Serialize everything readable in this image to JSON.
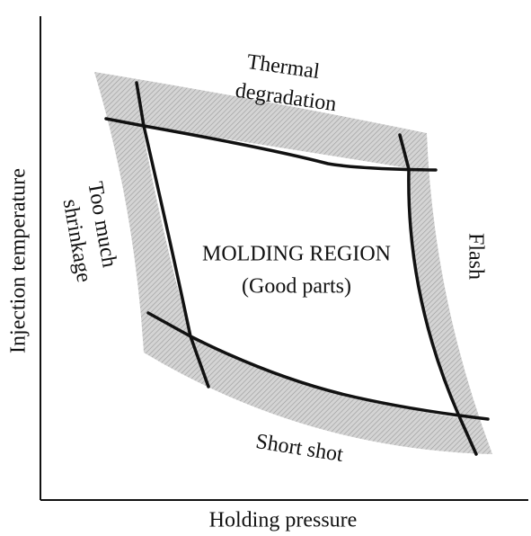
{
  "axes": {
    "x_label": "Holding pressure",
    "y_label": "Injection temperature"
  },
  "regions": {
    "top": [
      "Thermal",
      "degradation"
    ],
    "left": [
      "Too much",
      "shrinkage"
    ],
    "right": "Flash",
    "bottom": "Short shot",
    "center": [
      "MOLDING REGION",
      "(Good parts)"
    ]
  }
}
